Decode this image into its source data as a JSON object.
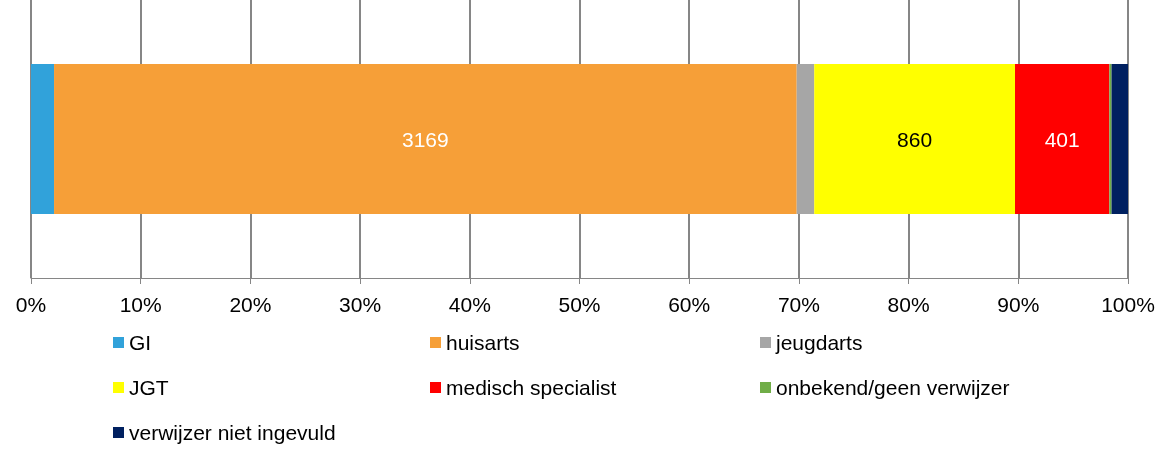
{
  "chart_data": {
    "type": "bar",
    "orientation": "horizontal",
    "stacked": true,
    "categories": [
      null
    ],
    "series": [
      {
        "name": "GI",
        "color": "#31a2da",
        "values": [
          2.1
        ]
      },
      {
        "name": "huisarts",
        "color": "#f69f38",
        "values": [
          67.7
        ]
      },
      {
        "name": "jeugdarts",
        "color": "#a6a6a6",
        "values": [
          1.6
        ]
      },
      {
        "name": "JGT",
        "color": "#ffff00",
        "values": [
          18.3
        ]
      },
      {
        "name": "medisch specialist",
        "color": "#ff0000",
        "values": [
          8.6
        ]
      },
      {
        "name": "onbekend/geen verwijzer",
        "color": "#70ad47",
        "values": [
          0.2
        ]
      },
      {
        "name": "verwijzer niet ingevuld",
        "color": "#002060",
        "values": [
          1.5
        ]
      }
    ],
    "annotations": [
      "3169",
      "860",
      "401"
    ],
    "xlim": [
      0,
      100
    ],
    "xticks": [
      {
        "value": 0,
        "label": "0%"
      },
      {
        "value": 10,
        "label": "10%"
      },
      {
        "value": 20,
        "label": "20%"
      },
      {
        "value": 30,
        "label": "30%"
      },
      {
        "value": 40,
        "label": "40%"
      },
      {
        "value": 50,
        "label": "50%"
      },
      {
        "value": 60,
        "label": "60%"
      },
      {
        "value": 70,
        "label": "70%"
      },
      {
        "value": 80,
        "label": "80%"
      },
      {
        "value": 90,
        "label": "90%"
      },
      {
        "value": 100,
        "label": "100%"
      }
    ],
    "grid": "x",
    "legend": "bottom",
    "tick_labels": "x"
  }
}
